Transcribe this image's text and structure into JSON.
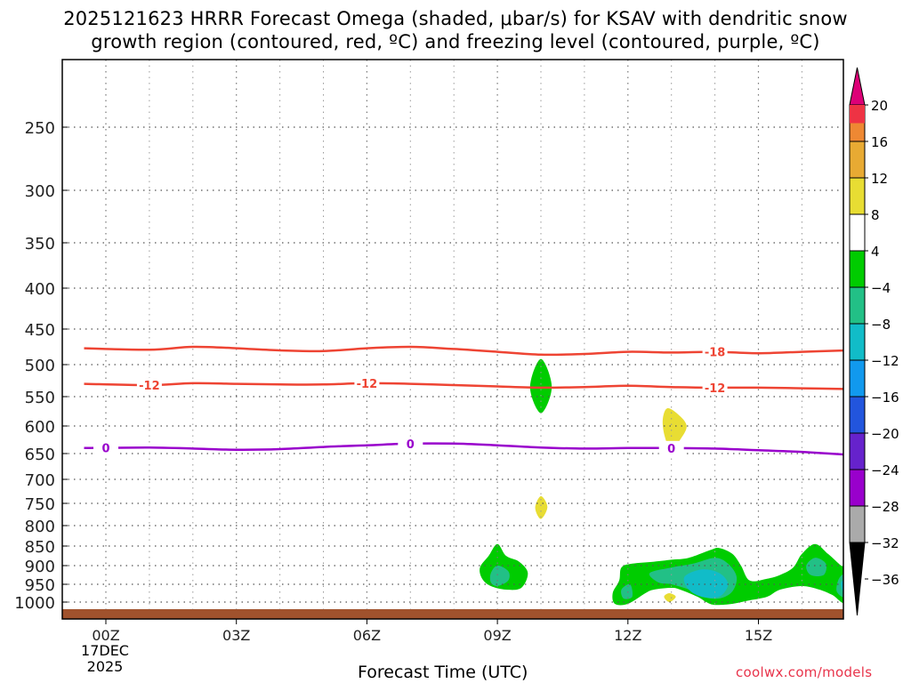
{
  "chart_data": {
    "type": "heatmap",
    "title_line1": "2025121623 HRRR Forecast Omega (shaded, μbar/s) for KSAV with dendritic snow",
    "title_line2": "growth region (contoured, red, ºC) and freezing level (contoured, purple, ºC)",
    "xlabel": "Forecast Time (UTC)",
    "credit": "coolwx.com/models",
    "x_start_label_date": "17DEC",
    "x_start_label_year": "2025",
    "xlim": [
      -0.5,
      17.0
    ],
    "x_ticks": [
      {
        "hour": 0,
        "label": "00Z"
      },
      {
        "hour": 3,
        "label": "03Z"
      },
      {
        "hour": 6,
        "label": "06Z"
      },
      {
        "hour": 9,
        "label": "09Z"
      },
      {
        "hour": 12,
        "label": "12Z"
      },
      {
        "hour": 15,
        "label": "15Z"
      }
    ],
    "x_minor_grid_hours": [
      1,
      2,
      4,
      5,
      7,
      8,
      10,
      11,
      13,
      14,
      16
    ],
    "ylim": [
      200,
      1030
    ],
    "y_ticks": [
      {
        "p": 250,
        "label": "250"
      },
      {
        "p": 300,
        "label": "300"
      },
      {
        "p": 350,
        "label": "350"
      },
      {
        "p": 400,
        "label": "400"
      },
      {
        "p": 450,
        "label": "450"
      },
      {
        "p": 500,
        "label": "500"
      },
      {
        "p": 550,
        "label": "550"
      },
      {
        "p": 600,
        "label": "600"
      },
      {
        "p": 650,
        "label": "650"
      },
      {
        "p": 700,
        "label": "700"
      },
      {
        "p": 750,
        "label": "750"
      },
      {
        "p": 800,
        "label": "800"
      },
      {
        "p": 850,
        "label": "850"
      },
      {
        "p": 900,
        "label": "900"
      },
      {
        "p": 950,
        "label": "950"
      },
      {
        "p": 1000,
        "label": "1000"
      }
    ],
    "ground_surface": true,
    "contour_lines": [
      {
        "name": "-18C",
        "color": "#ee4433",
        "label": "-18",
        "points": [
          [
            -0.5,
            477
          ],
          [
            1,
            479
          ],
          [
            2,
            475
          ],
          [
            3,
            477
          ],
          [
            4,
            480
          ],
          [
            5,
            481
          ],
          [
            6,
            477
          ],
          [
            7,
            475
          ],
          [
            8,
            478
          ],
          [
            9,
            482
          ],
          [
            10,
            486
          ],
          [
            11,
            485
          ],
          [
            12,
            482
          ],
          [
            13,
            483
          ],
          [
            14,
            482
          ],
          [
            15,
            484
          ],
          [
            16,
            482
          ],
          [
            17,
            480
          ]
        ],
        "label_hours": [
          14
        ]
      },
      {
        "name": "-12C",
        "color": "#ee4433",
        "label": "-12",
        "points": [
          [
            -0.5,
            530
          ],
          [
            1,
            532
          ],
          [
            2,
            529
          ],
          [
            3,
            530
          ],
          [
            4,
            531
          ],
          [
            5,
            531
          ],
          [
            6,
            529
          ],
          [
            7,
            530
          ],
          [
            8,
            532
          ],
          [
            9,
            534
          ],
          [
            10,
            536
          ],
          [
            11,
            535
          ],
          [
            12,
            533
          ],
          [
            13,
            535
          ],
          [
            14,
            536
          ],
          [
            15,
            536
          ],
          [
            16,
            537
          ],
          [
            17,
            538
          ]
        ],
        "label_hours": [
          1,
          6,
          14
        ]
      },
      {
        "name": "0C",
        "color": "#9900cc",
        "label": "0",
        "points": [
          [
            -0.5,
            640
          ],
          [
            1,
            639
          ],
          [
            2,
            641
          ],
          [
            3,
            643
          ],
          [
            4,
            642
          ],
          [
            5,
            638
          ],
          [
            6,
            635
          ],
          [
            7,
            632
          ],
          [
            8,
            632
          ],
          [
            9,
            635
          ],
          [
            10,
            639
          ],
          [
            11,
            641
          ],
          [
            12,
            640
          ],
          [
            13,
            640
          ],
          [
            14,
            641
          ],
          [
            15,
            644
          ],
          [
            16,
            647
          ],
          [
            17,
            652
          ]
        ],
        "label_hours": [
          0,
          7,
          13
        ]
      }
    ],
    "shaded_regions": [
      {
        "name": "omega-neg-10h-upper",
        "color": "#00cc00",
        "points": [
          [
            10.0,
            492
          ],
          [
            10.25,
            535
          ],
          [
            10.0,
            578
          ],
          [
            9.75,
            535
          ]
        ]
      },
      {
        "name": "omega-pos-13h",
        "color": "#e8dd33",
        "points": [
          [
            12.9,
            570
          ],
          [
            13.15,
            580
          ],
          [
            13.35,
            600
          ],
          [
            13.2,
            625
          ],
          [
            13.0,
            645
          ],
          [
            12.85,
            620
          ],
          [
            12.8,
            590
          ]
        ]
      },
      {
        "name": "omega-pos-10h-lower",
        "color": "#e8dd33",
        "points": [
          [
            10.0,
            735
          ],
          [
            10.15,
            758
          ],
          [
            10.0,
            785
          ],
          [
            9.87,
            760
          ]
        ]
      },
      {
        "name": "omega-pos-13h-low",
        "color": "#e8dd33",
        "points": [
          [
            12.95,
            975
          ],
          [
            13.1,
            985
          ],
          [
            12.95,
            1000
          ],
          [
            12.83,
            985
          ]
        ]
      },
      {
        "name": "omega-neg-09h-outer",
        "color": "#00cc00",
        "points": [
          [
            8.6,
            905
          ],
          [
            8.8,
            875
          ],
          [
            9.0,
            845
          ],
          [
            9.2,
            875
          ],
          [
            9.5,
            890
          ],
          [
            9.7,
            920
          ],
          [
            9.55,
            960
          ],
          [
            9.2,
            965
          ],
          [
            8.85,
            955
          ],
          [
            8.65,
            935
          ]
        ]
      },
      {
        "name": "omega-neg-09h-inner",
        "color": "#22c086",
        "points": [
          [
            8.85,
            920
          ],
          [
            9.0,
            900
          ],
          [
            9.25,
            915
          ],
          [
            9.25,
            940
          ],
          [
            9.0,
            955
          ],
          [
            8.85,
            945
          ]
        ]
      },
      {
        "name": "omega-neg-12-17h-outer",
        "color": "#00cc00",
        "points": [
          [
            11.65,
            975
          ],
          [
            11.8,
            940
          ],
          [
            11.85,
            905
          ],
          [
            12.1,
            895
          ],
          [
            12.6,
            890
          ],
          [
            13.0,
            885
          ],
          [
            13.4,
            880
          ],
          [
            13.9,
            860
          ],
          [
            14.1,
            855
          ],
          [
            14.4,
            870
          ],
          [
            14.6,
            900
          ],
          [
            14.8,
            940
          ],
          [
            15.2,
            935
          ],
          [
            15.5,
            925
          ],
          [
            15.8,
            905
          ],
          [
            16.0,
            870
          ],
          [
            16.3,
            845
          ],
          [
            16.6,
            870
          ],
          [
            16.9,
            900
          ],
          [
            17.0,
            905
          ],
          [
            17.0,
            1000
          ],
          [
            16.7,
            980
          ],
          [
            16.4,
            965
          ],
          [
            16.0,
            955
          ],
          [
            15.5,
            965
          ],
          [
            15.2,
            985
          ],
          [
            14.8,
            995
          ],
          [
            14.4,
            1005
          ],
          [
            14.0,
            1008
          ],
          [
            13.8,
            1000
          ],
          [
            13.6,
            985
          ],
          [
            13.2,
            965
          ],
          [
            13.0,
            960
          ],
          [
            12.6,
            965
          ],
          [
            12.4,
            975
          ],
          [
            12.0,
            1005
          ],
          [
            11.7,
            1005
          ]
        ]
      },
      {
        "name": "omega-neg-12-17h-mid",
        "color": "#22c086",
        "points": [
          [
            12.5,
            920
          ],
          [
            13.0,
            905
          ],
          [
            13.5,
            895
          ],
          [
            14.0,
            880
          ],
          [
            14.3,
            895
          ],
          [
            14.5,
            930
          ],
          [
            14.4,
            970
          ],
          [
            14.1,
            990
          ],
          [
            13.7,
            985
          ],
          [
            13.4,
            965
          ],
          [
            13.0,
            950
          ],
          [
            12.7,
            945
          ]
        ]
      },
      {
        "name": "omega-neg-12-17h-mid2",
        "color": "#22c086",
        "points": [
          [
            16.1,
            900
          ],
          [
            16.3,
            880
          ],
          [
            16.55,
            895
          ],
          [
            16.5,
            925
          ],
          [
            16.2,
            925
          ]
        ]
      },
      {
        "name": "omega-neg-12-17h-mid3",
        "color": "#22c086",
        "points": [
          [
            16.85,
            935
          ],
          [
            17.0,
            925
          ],
          [
            17.0,
            985
          ],
          [
            16.8,
            970
          ]
        ]
      },
      {
        "name": "omega-neg-12h-lowedge",
        "color": "#22c086",
        "points": [
          [
            11.85,
            965
          ],
          [
            12.05,
            950
          ],
          [
            12.1,
            985
          ],
          [
            11.9,
            990
          ]
        ]
      },
      {
        "name": "omega-neg-14h-core",
        "color": "#11bcc8",
        "points": [
          [
            13.3,
            930
          ],
          [
            13.7,
            910
          ],
          [
            14.1,
            920
          ],
          [
            14.3,
            950
          ],
          [
            14.1,
            985
          ],
          [
            13.7,
            985
          ],
          [
            13.4,
            965
          ]
        ]
      },
      {
        "name": "omega-neg-17h-core",
        "color": "#11bcc8",
        "points": [
          [
            16.9,
            945
          ],
          [
            17.0,
            940
          ],
          [
            17.0,
            975
          ],
          [
            16.92,
            965
          ]
        ]
      }
    ],
    "colorbar": {
      "levels": [
        {
          "label": "20",
          "color": "#ee3344"
        },
        {
          "label": "16",
          "color": "#ee8833"
        },
        {
          "label": "12",
          "color": "#e8aa33"
        },
        {
          "label": "8",
          "color": "#e8dd33"
        },
        {
          "label": "4",
          "color": "#ffffff"
        },
        {
          "label": "−4",
          "color": "#00cc00"
        },
        {
          "label": "−8",
          "color": "#22c086"
        },
        {
          "label": "−12",
          "color": "#11bcc8"
        },
        {
          "label": "−16",
          "color": "#1199ee"
        },
        {
          "label": "−20",
          "color": "#2255dd"
        },
        {
          "label": "−24",
          "color": "#6622cc"
        },
        {
          "label": "−28",
          "color": "#9900cc"
        },
        {
          "label": "−32",
          "color": "#aaaaaa"
        },
        {
          "label": "−36",
          "color": "#000000"
        }
      ],
      "top_arrow_color": "#dd0077",
      "bottom_arrow_color": "#000000",
      "top_band_color": "#ee3344",
      "fills_between_labels": [
        "#ee8833",
        "#e8aa33",
        "#e8dd33",
        "#ffffff",
        "#00cc00",
        "#22c086",
        "#11bcc8",
        "#1199ee",
        "#2255dd",
        "#6622cc",
        "#9900cc",
        "#aaaaaa"
      ]
    }
  }
}
